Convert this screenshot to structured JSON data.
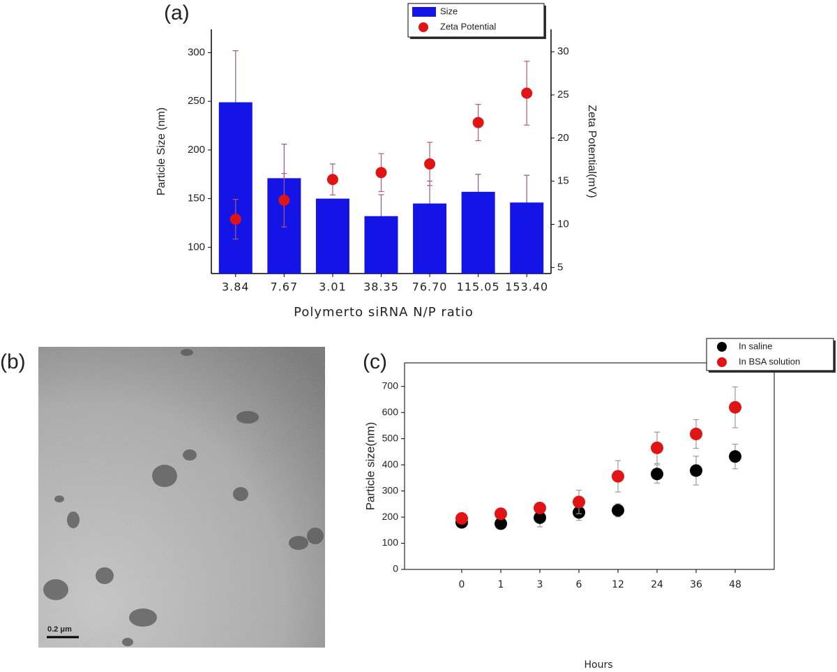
{
  "chart_data": [
    {
      "type": "bar",
      "title": "(a)",
      "categories": [
        "3.84",
        "7.67",
        "3.01",
        "38.35",
        "76.70",
        "115.05",
        "153.40"
      ],
      "x_label": "Polymerto siRNA N/P ratio",
      "y_label": "Particle Size (nm)",
      "y2_label": "Zeta Potential(mV)",
      "series": [
        {
          "name": "Size",
          "type": "bar",
          "color": "#1414e6",
          "axis": "y",
          "values": [
            249,
            171,
            150,
            132,
            145,
            157,
            146
          ],
          "errors": [
            53,
            35,
            null,
            22,
            23,
            18,
            28
          ]
        },
        {
          "name": "Zeta Potential",
          "type": "scatter",
          "color": "#e01414",
          "axis": "y2",
          "values": [
            10.6,
            12.8,
            15.2,
            16.0,
            17.0,
            21.8,
            25.2
          ],
          "errors": [
            2.3,
            3.1,
            1.8,
            2.2,
            2.5,
            2.1,
            3.7
          ]
        }
      ],
      "ylim": [
        73,
        324
      ],
      "yticks": [
        100,
        150,
        200,
        250,
        300
      ],
      "y2lim": [
        4.3,
        32.6
      ],
      "y2ticks": [
        5,
        10,
        15,
        20,
        25,
        30
      ],
      "legend": "upper right"
    },
    {
      "type": "scatter",
      "title": "(c)",
      "categories": [
        "0",
        "1",
        "3",
        "6",
        "12",
        "24",
        "36",
        "48"
      ],
      "x_label": "Hours",
      "y_label": "Particle size(nm)",
      "series": [
        {
          "name": "In saline",
          "color": "#000000",
          "values": [
            180,
            175,
            198,
            218,
            226,
            365,
            378,
            432
          ],
          "errors": [
            15,
            10,
            35,
            30,
            25,
            35,
            55,
            47
          ]
        },
        {
          "name": "In BSA solution",
          "color": "#e01414",
          "values": [
            195,
            213,
            235,
            258,
            356,
            465,
            518,
            620
          ],
          "errors": [
            20,
            20,
            20,
            45,
            60,
            60,
            55,
            78
          ]
        }
      ],
      "ylim": [
        0,
        790
      ],
      "yticks": [
        0,
        100,
        200,
        300,
        400,
        500,
        600,
        700
      ],
      "legend": "upper right"
    }
  ],
  "image": {
    "label": "(b)",
    "scale_bar": "0.2 μm"
  }
}
